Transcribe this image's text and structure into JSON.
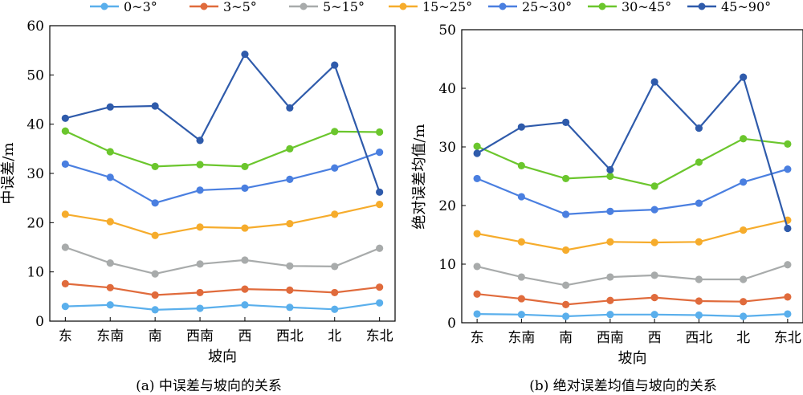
{
  "legend": {
    "entries": [
      "0~3°",
      "3~5°",
      "5~15°",
      "15~25°",
      "25~30°",
      "30~45°",
      "45~90°"
    ],
    "colors": [
      "#5aafec",
      "#e06b3c",
      "#a8abab",
      "#f6ac2c",
      "#4a7fe0",
      "#6bc62d",
      "#2f5bab"
    ]
  },
  "chart_data": [
    {
      "type": "line",
      "caption": "(a) 中误差与坡向的关系",
      "xlabel": "坡向",
      "ylabel": "中误差/m",
      "categories": [
        "东",
        "东南",
        "南",
        "西南",
        "西",
        "西北",
        "北",
        "东北"
      ],
      "ylim": [
        0,
        60
      ],
      "yticks": [
        0,
        10,
        20,
        30,
        40,
        50,
        60
      ],
      "series": [
        {
          "name": "0~3°",
          "values": [
            3.0,
            3.3,
            2.3,
            2.6,
            3.3,
            2.8,
            2.4,
            3.7
          ]
        },
        {
          "name": "3~5°",
          "values": [
            7.6,
            6.8,
            5.3,
            5.8,
            6.5,
            6.3,
            5.8,
            6.9
          ]
        },
        {
          "name": "5~15°",
          "values": [
            15.0,
            11.8,
            9.6,
            11.6,
            12.4,
            11.2,
            11.1,
            14.8
          ]
        },
        {
          "name": "15~25°",
          "values": [
            21.7,
            20.2,
            17.4,
            19.1,
            18.9,
            19.8,
            21.7,
            23.7
          ]
        },
        {
          "name": "25~30°",
          "values": [
            31.9,
            29.2,
            24.0,
            26.6,
            27.0,
            28.8,
            31.1,
            34.3
          ]
        },
        {
          "name": "30~45°",
          "values": [
            38.6,
            34.4,
            31.4,
            31.8,
            31.4,
            35.0,
            38.5,
            38.4
          ]
        },
        {
          "name": "45~90°",
          "values": [
            41.2,
            43.5,
            43.7,
            36.7,
            54.2,
            43.3,
            52.0,
            26.2
          ]
        }
      ]
    },
    {
      "type": "line",
      "caption": "(b) 绝对误差均值与坡向的关系",
      "xlabel": "坡向",
      "ylabel": "绝对误差均值/m",
      "categories": [
        "东",
        "东南",
        "南",
        "西南",
        "西",
        "西北",
        "北",
        "东北"
      ],
      "ylim": [
        0,
        50
      ],
      "yticks": [
        0,
        10,
        20,
        30,
        40,
        50
      ],
      "series": [
        {
          "name": "0~3°",
          "values": [
            1.5,
            1.4,
            1.1,
            1.4,
            1.4,
            1.3,
            1.1,
            1.5
          ]
        },
        {
          "name": "3~5°",
          "values": [
            4.9,
            4.1,
            3.1,
            3.8,
            4.3,
            3.7,
            3.6,
            4.4
          ]
        },
        {
          "name": "5~15°",
          "values": [
            9.6,
            7.8,
            6.4,
            7.8,
            8.1,
            7.4,
            7.4,
            9.9
          ]
        },
        {
          "name": "15~25°",
          "values": [
            15.2,
            13.8,
            12.4,
            13.8,
            13.7,
            13.8,
            15.8,
            17.5
          ]
        },
        {
          "name": "25~30°",
          "values": [
            24.6,
            21.5,
            18.5,
            19.0,
            19.3,
            20.4,
            24.0,
            26.2
          ]
        },
        {
          "name": "30~45°",
          "values": [
            30.1,
            26.8,
            24.6,
            25.0,
            23.3,
            27.4,
            31.4,
            30.5
          ]
        },
        {
          "name": "45~90°",
          "values": [
            28.9,
            33.4,
            34.2,
            26.1,
            41.1,
            33.2,
            41.9,
            16.1
          ]
        }
      ]
    }
  ]
}
